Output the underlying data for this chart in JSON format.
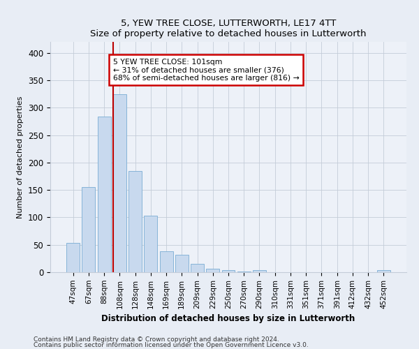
{
  "title": "5, YEW TREE CLOSE, LUTTERWORTH, LE17 4TT",
  "subtitle": "Size of property relative to detached houses in Lutterworth",
  "xlabel": "Distribution of detached houses by size in Lutterworth",
  "ylabel": "Number of detached properties",
  "bar_labels": [
    "47sqm",
    "67sqm",
    "88sqm",
    "108sqm",
    "128sqm",
    "148sqm",
    "169sqm",
    "189sqm",
    "209sqm",
    "229sqm",
    "250sqm",
    "270sqm",
    "290sqm",
    "310sqm",
    "331sqm",
    "351sqm",
    "371sqm",
    "391sqm",
    "412sqm",
    "432sqm",
    "452sqm"
  ],
  "bar_values": [
    53,
    155,
    284,
    325,
    185,
    103,
    38,
    32,
    15,
    6,
    4,
    1,
    4,
    0,
    0,
    0,
    0,
    0,
    0,
    0,
    4
  ],
  "bar_color": "#c8d9ee",
  "bar_edge_color": "#7aadd4",
  "vline_x_index": 3,
  "vline_color": "#bb0000",
  "annotation_text": "5 YEW TREE CLOSE: 101sqm\n← 31% of detached houses are smaller (376)\n68% of semi-detached houses are larger (816) →",
  "annotation_box_color": "#ffffff",
  "annotation_box_edge": "#cc0000",
  "ylim": [
    0,
    420
  ],
  "yticks": [
    0,
    50,
    100,
    150,
    200,
    250,
    300,
    350,
    400
  ],
  "footnote1": "Contains HM Land Registry data © Crown copyright and database right 2024.",
  "footnote2": "Contains public sector information licensed under the Open Government Licence v3.0.",
  "bg_color": "#e8edf5",
  "plot_bg_color": "#edf1f8"
}
